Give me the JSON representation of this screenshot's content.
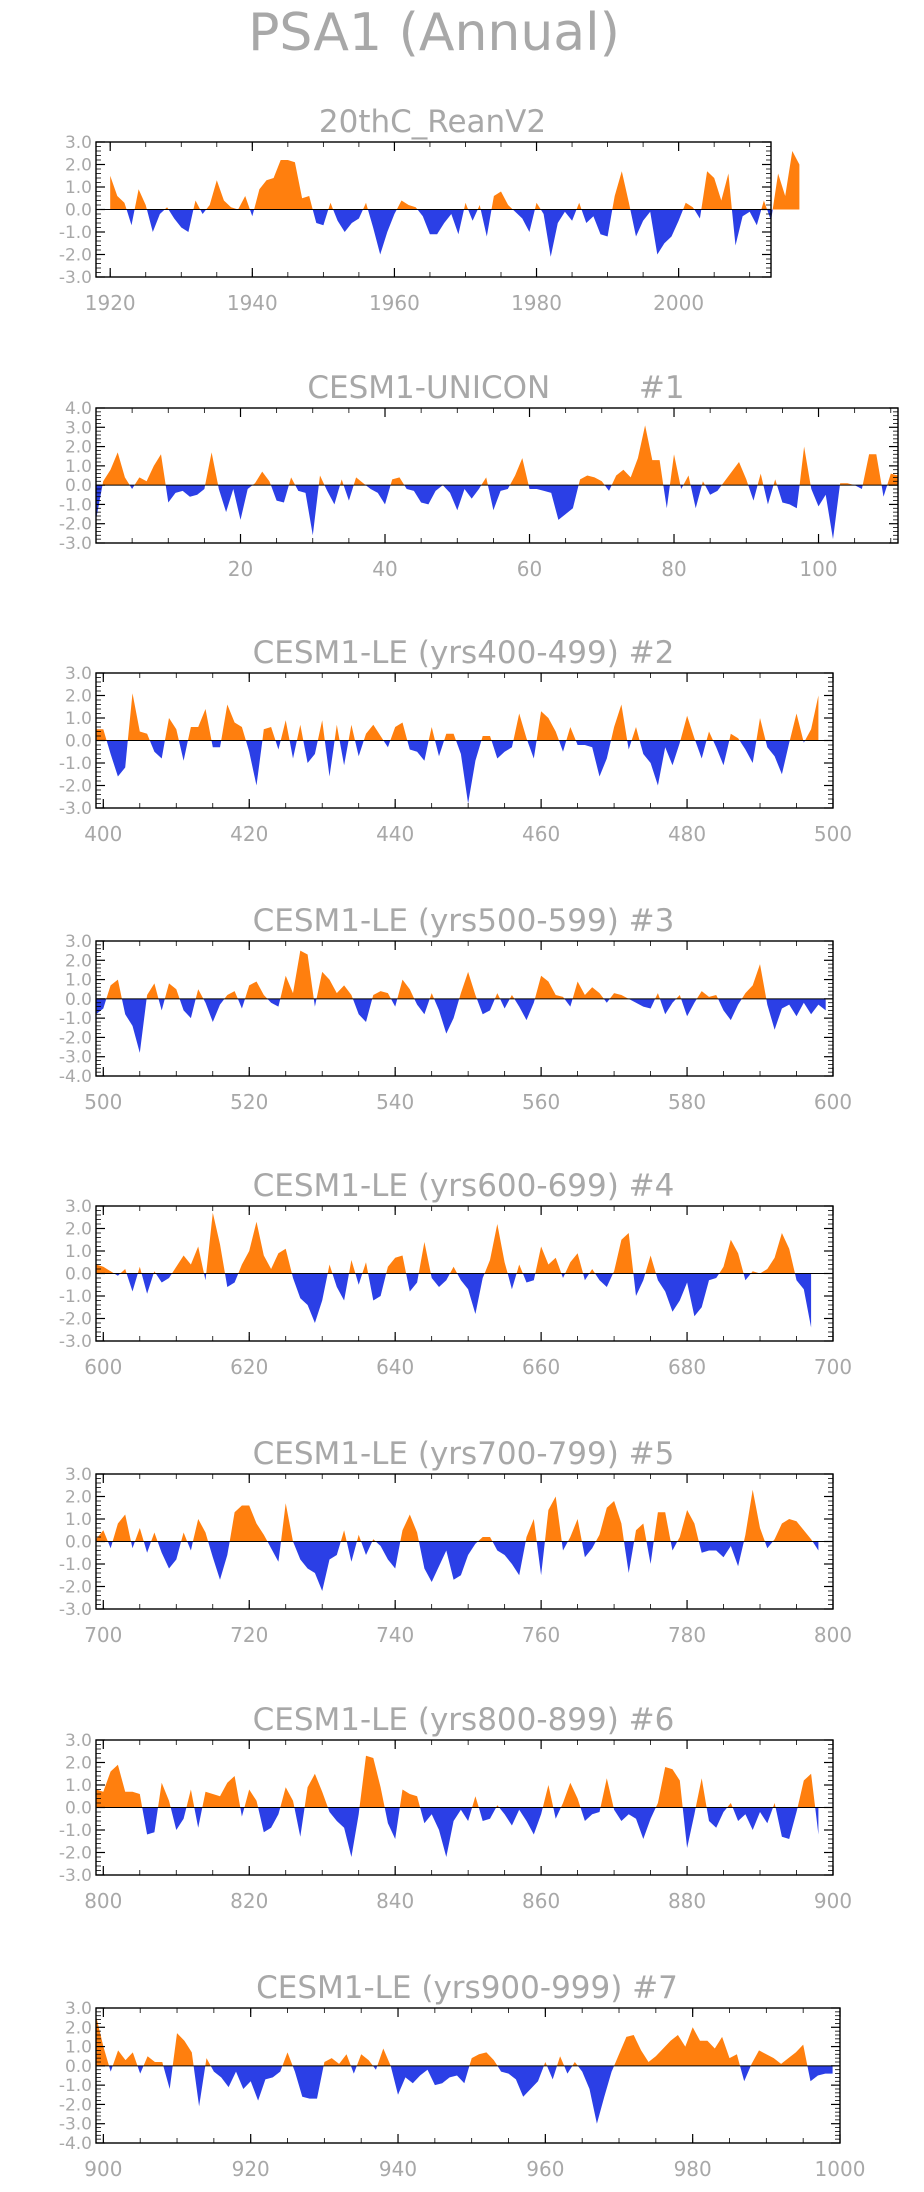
{
  "title": "PSA1 (Annual)",
  "colors": {
    "positive": "#ff7f0e",
    "negative": "#2b3fe6",
    "zero_line": "#000000",
    "text": "#a8a8a8"
  },
  "chart_data": [
    {
      "type": "area",
      "title": "20thC_ReanV2",
      "xlim": [
        1918,
        2013
      ],
      "ylim": [
        -3.0,
        3.0
      ],
      "xticks": [
        "1920",
        "1940",
        "1960",
        "1980",
        "2000"
      ],
      "xtick_values": [
        1920,
        1940,
        1960,
        1980,
        2000
      ],
      "yticks": [
        "3.0",
        "2.0",
        "1.0",
        "0.0",
        "-1.0",
        "-2.0",
        "-3.0"
      ],
      "ytick_values": [
        3,
        2,
        1,
        0,
        -1,
        -2,
        -3
      ],
      "x_start": 1920,
      "values": [
        1.5,
        0.6,
        0.3,
        -0.7,
        0.9,
        0.2,
        -1.0,
        -0.2,
        0.1,
        -0.4,
        -0.8,
        -1.0,
        0.4,
        -0.2,
        0.2,
        1.3,
        0.4,
        0.1,
        0.0,
        0.6,
        -0.3,
        0.9,
        1.3,
        1.4,
        2.2,
        2.2,
        2.1,
        0.5,
        0.6,
        -0.6,
        -0.7,
        0.3,
        -0.5,
        -1.0,
        -0.6,
        -0.4,
        0.3,
        -0.8,
        -2.0,
        -1.0,
        -0.2,
        0.4,
        0.2,
        0.1,
        -0.3,
        -1.1,
        -1.1,
        -0.6,
        -0.2,
        -1.1,
        0.3,
        -0.5,
        0.2,
        -1.2,
        0.6,
        0.8,
        0.2,
        -0.1,
        -0.4,
        -1.0,
        0.3,
        -0.2,
        -2.1,
        -0.6,
        -0.1,
        -0.5,
        0.3,
        -0.6,
        -0.3,
        -1.1,
        -1.2,
        0.6,
        1.7,
        0.3,
        -1.2,
        -0.5,
        -0.1,
        -2.0,
        -1.5,
        -1.2,
        -0.5,
        0.3,
        0.1,
        -0.4,
        1.7,
        1.4,
        0.4,
        1.6,
        -1.6,
        -0.3,
        -0.1,
        -0.7,
        0.4,
        -0.5,
        1.6,
        0.6,
        2.6,
        2.0
      ]
    },
    {
      "type": "area",
      "title": "CESM1-UNICON         #1",
      "xlim": [
        0,
        111
      ],
      "ylim": [
        -3.0,
        4.0
      ],
      "xticks": [
        "20",
        "40",
        "60",
        "80",
        "100"
      ],
      "xtick_values": [
        20,
        40,
        60,
        80,
        100
      ],
      "yticks": [
        "4.0",
        "3.0",
        "2.0",
        "1.0",
        "0.0",
        "-1.0",
        "-2.0",
        "-3.0"
      ],
      "ytick_values": [
        4,
        3,
        2,
        1,
        0,
        -1,
        -2,
        -3
      ],
      "x_start": 0,
      "values": [
        -1.8,
        0.2,
        0.8,
        1.7,
        0.4,
        -0.2,
        0.4,
        0.2,
        1.0,
        1.6,
        -0.9,
        -0.4,
        -0.3,
        -0.6,
        -0.5,
        -0.2,
        1.7,
        -0.2,
        -1.4,
        -0.2,
        -1.8,
        -0.2,
        0.1,
        0.7,
        0.2,
        -0.8,
        -0.9,
        0.4,
        -0.3,
        -0.4,
        -2.6,
        0.5,
        -0.3,
        -1.0,
        0.3,
        -0.8,
        0.4,
        0.1,
        -0.2,
        -0.4,
        -1.0,
        0.3,
        0.4,
        -0.2,
        -0.3,
        -0.9,
        -1.0,
        -0.3,
        0.0,
        -0.4,
        -1.3,
        -0.2,
        -0.7,
        -0.2,
        0.4,
        -1.3,
        -0.3,
        -0.2,
        0.5,
        1.4,
        -0.2,
        -0.2,
        -0.3,
        -0.4,
        -1.8,
        -1.5,
        -1.2,
        0.3,
        0.5,
        0.4,
        0.2,
        -0.3,
        0.5,
        0.8,
        0.4,
        1.4,
        3.1,
        1.3,
        1.3,
        -1.2,
        1.6,
        -0.2,
        0.5,
        -1.2,
        0.2,
        -0.5,
        -0.3,
        0.2,
        0.7,
        1.2,
        0.3,
        -0.8,
        0.6,
        -1.0,
        0.3,
        -0.9,
        -1.0,
        -1.2,
        2.0,
        -0.2,
        -1.1,
        -0.5,
        -2.8,
        0.1,
        0.1,
        0.0,
        -0.2,
        1.6,
        1.6,
        -0.6,
        0.6,
        0.5
      ]
    },
    {
      "type": "area",
      "title": "CESM1-LE (yrs400-499) #2",
      "xlim": [
        399,
        500
      ],
      "ylim": [
        -3.0,
        3.0
      ],
      "xticks": [
        "400",
        "420",
        "440",
        "460",
        "480",
        "500"
      ],
      "xtick_values": [
        400,
        420,
        440,
        460,
        480,
        500
      ],
      "yticks": [
        "3.0",
        "2.0",
        "1.0",
        "0.0",
        "-1.0",
        "-2.0",
        "-3.0"
      ],
      "ytick_values": [
        3,
        2,
        1,
        0,
        -1,
        -2,
        -3
      ],
      "x_start": 399,
      "values": [
        0.5,
        0.5,
        -0.6,
        -1.6,
        -1.2,
        2.1,
        0.4,
        0.3,
        -0.5,
        -0.8,
        1.0,
        0.5,
        -0.9,
        0.6,
        0.6,
        1.4,
        -0.3,
        -0.3,
        1.6,
        0.8,
        0.6,
        -0.5,
        -2.0,
        0.5,
        0.6,
        -0.4,
        0.9,
        -0.8,
        0.7,
        -1.0,
        -0.6,
        0.9,
        -1.6,
        0.7,
        -1.1,
        0.7,
        -0.7,
        0.3,
        0.7,
        0.2,
        -0.3,
        0.6,
        0.8,
        -0.4,
        -0.5,
        -0.9,
        0.6,
        -0.7,
        0.3,
        0.3,
        -0.6,
        -2.8,
        -0.9,
        0.2,
        0.2,
        -0.8,
        -0.5,
        -0.3,
        1.2,
        0.1,
        -0.8,
        1.3,
        1.0,
        0.4,
        -0.5,
        0.6,
        -0.2,
        -0.2,
        -0.3,
        -1.6,
        -0.8,
        0.6,
        1.6,
        -0.4,
        0.6,
        -0.6,
        -1.0,
        -2.0,
        -0.3,
        -1.1,
        -0.1,
        1.1,
        0.1,
        -0.8,
        0.4,
        -0.3,
        -1.1,
        0.3,
        0.1,
        -0.4,
        -1.0,
        1.0,
        -0.3,
        -0.7,
        -1.5,
        -0.1,
        1.2,
        -0.1,
        0.5,
        2.0
      ]
    },
    {
      "type": "area",
      "title": "CESM1-LE (yrs500-599) #3",
      "xlim": [
        499,
        600
      ],
      "ylim": [
        -4.0,
        3.0
      ],
      "xticks": [
        "500",
        "520",
        "540",
        "560",
        "580",
        "600"
      ],
      "xtick_values": [
        500,
        520,
        540,
        560,
        580,
        600
      ],
      "yticks": [
        "3.0",
        "2.0",
        "1.0",
        "0.0",
        "-1.0",
        "-2.0",
        "-3.0",
        "-4.0"
      ],
      "ytick_values": [
        3,
        2,
        1,
        0,
        -1,
        -2,
        -3,
        -4
      ],
      "x_start": 499,
      "values": [
        -0.8,
        -0.5,
        0.7,
        1.0,
        -0.8,
        -1.4,
        -2.8,
        0.2,
        0.8,
        -0.6,
        0.8,
        0.5,
        -0.6,
        -1.0,
        0.5,
        -0.2,
        -1.2,
        -0.3,
        0.2,
        0.4,
        -0.5,
        0.7,
        0.9,
        0.2,
        -0.2,
        -0.4,
        1.2,
        0.3,
        2.5,
        2.3,
        -0.4,
        1.4,
        1.0,
        0.3,
        0.7,
        0.2,
        -0.8,
        -1.2,
        0.2,
        0.4,
        0.3,
        -0.4,
        1.0,
        0.5,
        -0.3,
        -0.8,
        0.3,
        -0.6,
        -1.8,
        -1.0,
        0.3,
        1.4,
        0.2,
        -0.8,
        -0.6,
        0.3,
        -0.5,
        0.2,
        -0.4,
        -1.1,
        -0.2,
        1.2,
        0.9,
        0.2,
        0.1,
        -0.4,
        0.9,
        0.2,
        0.6,
        0.3,
        -0.2,
        0.3,
        0.2,
        0.0,
        -0.2,
        -0.4,
        -0.5,
        0.3,
        -0.8,
        -0.2,
        0.2,
        -0.9,
        -0.2,
        0.4,
        0.1,
        0.2,
        -0.6,
        -1.1,
        -0.3,
        0.3,
        0.7,
        1.8,
        -0.3,
        -1.6,
        -0.5,
        -0.3,
        -0.9,
        -0.2,
        -0.8,
        -0.3,
        -0.6
      ]
    },
    {
      "type": "area",
      "title": "CESM1-LE (yrs600-699) #4",
      "xlim": [
        599,
        700
      ],
      "ylim": [
        -3.0,
        3.0
      ],
      "xticks": [
        "600",
        "620",
        "640",
        "660",
        "680",
        "700"
      ],
      "xtick_values": [
        600,
        620,
        640,
        660,
        680,
        700
      ],
      "yticks": [
        "3.0",
        "2.0",
        "1.0",
        "0.0",
        "-1.0",
        "-2.0",
        "-3.0"
      ],
      "ytick_values": [
        3,
        2,
        1,
        0,
        -1,
        -2,
        -3
      ],
      "x_start": 599,
      "values": [
        0.4,
        0.3,
        0.1,
        -0.1,
        0.2,
        -0.8,
        0.3,
        -0.9,
        0.1,
        -0.4,
        -0.2,
        0.3,
        0.8,
        0.4,
        1.2,
        -0.3,
        2.7,
        1.3,
        -0.6,
        -0.4,
        0.4,
        1.0,
        2.3,
        0.8,
        0.2,
        0.9,
        1.1,
        -0.2,
        -1.1,
        -1.4,
        -2.2,
        -1.2,
        0.4,
        -0.6,
        -1.2,
        0.6,
        -0.5,
        0.5,
        -1.2,
        -1.0,
        0.3,
        0.7,
        0.8,
        -0.8,
        -0.4,
        1.4,
        -0.2,
        -0.6,
        -0.3,
        0.3,
        -0.3,
        -0.7,
        -1.8,
        -0.2,
        0.6,
        2.2,
        0.5,
        -0.7,
        0.4,
        -0.4,
        -0.3,
        1.2,
        0.4,
        0.7,
        -0.2,
        0.5,
        0.9,
        -0.3,
        0.2,
        -0.3,
        -0.6,
        0.1,
        1.5,
        1.8,
        -1.0,
        -0.3,
        0.8,
        -0.3,
        -0.8,
        -1.7,
        -1.2,
        -0.4,
        -1.9,
        -1.5,
        -0.3,
        -0.2,
        0.3,
        1.5,
        0.9,
        -0.3,
        0.1,
        0.0,
        0.2,
        0.7,
        1.8,
        1.1,
        -0.3,
        -0.7,
        -2.4
      ]
    },
    {
      "type": "area",
      "title": "CESM1-LE (yrs700-799) #5",
      "xlim": [
        699,
        800
      ],
      "ylim": [
        -3.0,
        3.0
      ],
      "xticks": [
        "700",
        "720",
        "740",
        "760",
        "780",
        "800"
      ],
      "xtick_values": [
        700,
        720,
        740,
        760,
        780,
        800
      ],
      "yticks": [
        "3.0",
        "2.0",
        "1.0",
        "0.0",
        "-1.0",
        "-2.0",
        "-3.0"
      ],
      "ytick_values": [
        3,
        2,
        1,
        0,
        -1,
        -2,
        -3
      ],
      "x_start": 699,
      "values": [
        0.1,
        0.5,
        -0.3,
        0.8,
        1.2,
        -0.3,
        0.6,
        -0.5,
        0.4,
        -0.5,
        -1.2,
        -0.8,
        0.4,
        -0.4,
        1.0,
        0.4,
        -0.7,
        -1.7,
        -0.6,
        1.3,
        1.6,
        1.6,
        0.8,
        0.3,
        -0.3,
        -0.9,
        1.7,
        0.0,
        -0.8,
        -1.2,
        -1.4,
        -2.2,
        -0.8,
        -0.6,
        0.5,
        -0.9,
        0.3,
        -0.6,
        0.1,
        -0.2,
        -0.8,
        -1.2,
        0.5,
        1.2,
        0.4,
        -1.2,
        -1.8,
        -1.1,
        -0.4,
        -1.7,
        -1.5,
        -0.6,
        -0.1,
        0.2,
        0.2,
        -0.4,
        -0.6,
        -1.0,
        -1.5,
        0.2,
        1.0,
        -1.5,
        1.4,
        2.0,
        -0.4,
        0.2,
        1.0,
        -0.7,
        -0.3,
        0.3,
        1.5,
        1.8,
        0.8,
        -1.4,
        0.5,
        0.8,
        -1.0,
        1.3,
        1.3,
        -0.4,
        0.2,
        1.4,
        0.8,
        -0.5,
        -0.4,
        -0.4,
        -0.7,
        -0.2,
        -1.1,
        0.3,
        2.3,
        0.6,
        -0.3,
        0.1,
        0.8,
        1.0,
        0.9,
        0.5,
        0.1,
        -0.4
      ]
    },
    {
      "type": "area",
      "title": "CESM1-LE (yrs800-899) #6",
      "xlim": [
        799,
        900
      ],
      "ylim": [
        -3.0,
        3.0
      ],
      "xticks": [
        "800",
        "820",
        "840",
        "860",
        "880",
        "900"
      ],
      "xtick_values": [
        800,
        820,
        840,
        860,
        880,
        900
      ],
      "yticks": [
        "3.0",
        "2.0",
        "1.0",
        "0.0",
        "-1.0",
        "-2.0",
        "-3.0"
      ],
      "ytick_values": [
        3,
        2,
        1,
        0,
        -1,
        -2,
        -3
      ],
      "x_start": 799,
      "values": [
        0.8,
        0.7,
        1.6,
        1.9,
        0.7,
        0.7,
        0.6,
        -1.2,
        -1.1,
        1.1,
        0.3,
        -1.0,
        -0.5,
        0.8,
        -0.9,
        0.7,
        0.6,
        0.5,
        1.1,
        1.4,
        -0.4,
        0.8,
        0.3,
        -1.1,
        -0.9,
        -0.3,
        0.9,
        0.3,
        -1.3,
        0.9,
        1.5,
        0.7,
        -0.2,
        -0.6,
        -0.9,
        -2.2,
        -0.3,
        2.3,
        2.2,
        0.9,
        -0.7,
        -1.4,
        0.8,
        0.6,
        0.5,
        -0.7,
        -0.3,
        -1.0,
        -2.2,
        -0.6,
        -0.1,
        -0.6,
        0.5,
        -0.6,
        -0.5,
        0.1,
        -0.3,
        -0.8,
        -0.1,
        -0.6,
        -1.2,
        -0.3,
        1.0,
        -0.5,
        0.2,
        1.1,
        0.4,
        -0.6,
        -0.3,
        -0.2,
        1.3,
        -0.1,
        -0.6,
        -0.3,
        -0.5,
        -1.4,
        -0.5,
        0.2,
        1.8,
        1.7,
        1.2,
        -1.8,
        -0.3,
        1.3,
        -0.6,
        -0.9,
        -0.2,
        0.2,
        -0.6,
        -0.3,
        -1.0,
        -0.2,
        -0.7,
        0.2,
        -1.3,
        -1.4,
        -0.2,
        1.2,
        1.5,
        -1.2
      ]
    },
    {
      "type": "area",
      "title": "CESM1-LE (yrs900-999) #7",
      "xlim": [
        899,
        1000
      ],
      "ylim": [
        -4.0,
        3.0
      ],
      "xticks": [
        "900",
        "920",
        "940",
        "960",
        "980",
        "1000"
      ],
      "xtick_values": [
        900,
        920,
        940,
        960,
        980,
        1000
      ],
      "yticks": [
        "3.0",
        "2.0",
        "1.0",
        "0.0",
        "-1.0",
        "-2.0",
        "-3.0",
        "-4.0"
      ],
      "ytick_values": [
        3,
        2,
        1,
        0,
        -1,
        -2,
        -3,
        -4
      ],
      "x_start": 899,
      "values": [
        2.6,
        1.0,
        -0.3,
        0.8,
        0.3,
        0.7,
        -0.4,
        0.5,
        0.2,
        0.2,
        -1.2,
        1.7,
        1.3,
        0.7,
        -2.1,
        0.4,
        -0.3,
        -0.6,
        -1.1,
        -0.3,
        -1.2,
        -0.8,
        -1.8,
        -0.7,
        -0.6,
        -0.3,
        0.7,
        -0.3,
        -1.6,
        -1.7,
        -1.7,
        0.2,
        0.4,
        0.1,
        0.6,
        -0.4,
        0.6,
        0.3,
        -0.2,
        0.9,
        0.0,
        -1.5,
        -0.6,
        -0.9,
        -0.5,
        -0.2,
        -1.0,
        -0.9,
        -0.6,
        -0.5,
        -0.9,
        0.4,
        0.6,
        0.7,
        0.3,
        -0.3,
        -0.4,
        -0.7,
        -1.6,
        -1.2,
        -0.8,
        0.2,
        -0.7,
        0.5,
        -0.4,
        0.2,
        -0.3,
        -1.2,
        -3.0,
        -1.6,
        -0.3,
        0.6,
        1.5,
        1.6,
        0.8,
        0.2,
        0.5,
        0.9,
        1.3,
        1.6,
        1.0,
        2.0,
        1.3,
        1.3,
        0.9,
        1.5,
        0.4,
        0.6,
        -0.8,
        0.1,
        0.8,
        0.6,
        0.4,
        0.1,
        0.4,
        0.7,
        1.1,
        -0.8,
        -0.5,
        -0.4,
        -0.4
      ]
    }
  ]
}
